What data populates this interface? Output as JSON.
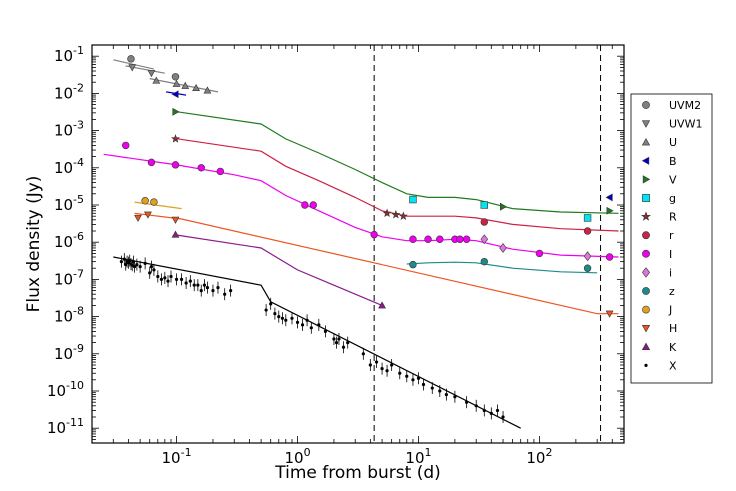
{
  "chart_data": {
    "type": "scatter",
    "xlabel": "Time from burst (d)",
    "ylabel": "Flux density (Jy)",
    "xscale": "log",
    "yscale": "log",
    "xlim": [
      0.02,
      500
    ],
    "ylim": [
      4e-12,
      0.2
    ],
    "legend_position": "right",
    "grid": false,
    "x_ticks": [
      {
        "value": 0.1,
        "base": "10",
        "exp": "-1"
      },
      {
        "value": 1,
        "base": "10",
        "exp": "0"
      },
      {
        "value": 10,
        "base": "10",
        "exp": "1"
      },
      {
        "value": 100,
        "base": "10",
        "exp": "2"
      }
    ],
    "y_ticks": [
      {
        "value": 1e-11,
        "base": "10",
        "exp": "-11"
      },
      {
        "value": 1e-10,
        "base": "10",
        "exp": "-10"
      },
      {
        "value": 1e-09,
        "base": "10",
        "exp": "-9"
      },
      {
        "value": 1e-08,
        "base": "10",
        "exp": "-8"
      },
      {
        "value": 1e-07,
        "base": "10",
        "exp": "-7"
      },
      {
        "value": 1e-06,
        "base": "10",
        "exp": "-6"
      },
      {
        "value": 1e-05,
        "base": "10",
        "exp": "-5"
      },
      {
        "value": 0.0001,
        "base": "10",
        "exp": "-4"
      },
      {
        "value": 0.001,
        "base": "10",
        "exp": "-3"
      },
      {
        "value": 0.01,
        "base": "10",
        "exp": "-2"
      },
      {
        "value": 0.1,
        "base": "10",
        "exp": "-1"
      }
    ],
    "vlines": [
      4.3,
      320
    ],
    "series": [
      {
        "name": "UVM2",
        "marker": "circle",
        "color": "#808080",
        "x": [
          0.042,
          0.098
        ],
        "y": [
          0.085,
          0.028
        ],
        "model": {
          "x": [
            0.03,
            0.065
          ],
          "y": [
            0.08,
            0.045
          ]
        }
      },
      {
        "name": "UVW1",
        "marker": "triangle-down",
        "color": "#808080",
        "x": [
          0.043,
          0.062
        ],
        "y": [
          0.05,
          0.035
        ],
        "model": {
          "x": [
            0.038,
            0.08
          ],
          "y": [
            0.055,
            0.035
          ]
        }
      },
      {
        "name": "U",
        "marker": "triangle-up",
        "color": "#808080",
        "x": [
          0.068,
          0.1,
          0.118,
          0.145,
          0.18
        ],
        "y": [
          0.022,
          0.018,
          0.016,
          0.014,
          0.012
        ],
        "model": {
          "x": [
            0.06,
            0.22
          ],
          "y": [
            0.025,
            0.011
          ]
        }
      },
      {
        "name": "B",
        "marker": "triangle-left",
        "color": "#0000cc",
        "x": [
          0.098,
          380
        ],
        "y": [
          0.0095,
          1.6e-05
        ],
        "model": {
          "x": [
            0.082,
            0.12
          ],
          "y": [
            0.011,
            0.009
          ]
        }
      },
      {
        "name": "V",
        "marker": "triangle-right",
        "color": "#207a20",
        "x": [
          0.098,
          50,
          380
        ],
        "y": [
          0.0032,
          9e-06,
          7e-06
        ],
        "model": {
          "x": [
            0.095,
            0.5,
            0.8,
            1.5,
            3,
            5,
            8,
            12,
            20,
            30,
            60,
            150,
            450
          ],
          "y": [
            0.0033,
            0.0015,
            0.0006,
            0.00025,
            9e-05,
            4e-05,
            2e-05,
            1.6e-05,
            1.6e-05,
            1.4e-05,
            8e-06,
            6.5e-06,
            6e-06
          ]
        }
      },
      {
        "name": "g",
        "marker": "square",
        "color": "#00e5ee",
        "x": [
          9,
          35,
          250
        ],
        "y": [
          1.4e-05,
          1e-05,
          4.5e-06
        ]
      },
      {
        "name": "R",
        "marker": "star",
        "color": "#8b2d2d",
        "x": [
          0.098,
          5.5,
          6.5,
          7.5
        ],
        "y": [
          0.0006,
          6e-06,
          5.5e-06,
          5e-06
        ]
      },
      {
        "name": "r",
        "marker": "circle",
        "color": "#cc2244",
        "x": [
          35,
          250
        ],
        "y": [
          3.5e-06,
          2e-06
        ],
        "model": {
          "x": [
            0.095,
            0.5,
            0.8,
            1.5,
            3,
            5,
            8,
            12,
            20,
            30,
            60,
            150,
            450
          ],
          "y": [
            0.00062,
            0.00028,
            0.00011,
            4.5e-05,
            1.6e-05,
            7e-06,
            5e-06,
            5e-06,
            5e-06,
            4.5e-06,
            3e-06,
            2.3e-06,
            2e-06
          ]
        }
      },
      {
        "name": "I",
        "marker": "circle",
        "color": "#ee00ee",
        "x": [
          0.038,
          0.062,
          0.098,
          0.16,
          0.23,
          1.15,
          1.35,
          4.3,
          9,
          12,
          15,
          20,
          22,
          25,
          100,
          380
        ],
        "y": [
          0.0004,
          0.00014,
          0.00012,
          0.0001,
          8e-05,
          1e-05,
          1e-05,
          1.6e-06,
          1.2e-06,
          1.2e-06,
          1.2e-06,
          1.2e-06,
          1.2e-06,
          1.2e-06,
          5e-07,
          4e-07
        ],
        "model": {
          "x": [
            0.025,
            0.1,
            0.3,
            0.5,
            0.8,
            1.5,
            3,
            5,
            8,
            12,
            20,
            30,
            60,
            150,
            450
          ],
          "y": [
            0.00023,
            0.00012,
            6.5e-05,
            4.5e-05,
            1.8e-05,
            7e-06,
            2.5e-06,
            1.4e-06,
            1.1e-06,
            1.1e-06,
            1.2e-06,
            1.1e-06,
            6.5e-07,
            4.5e-07,
            4e-07
          ]
        }
      },
      {
        "name": "i",
        "marker": "diamond",
        "color": "#dd77dd",
        "x": [
          35,
          50,
          250
        ],
        "y": [
          1.2e-06,
          7e-07,
          4.2e-07
        ]
      },
      {
        "name": "z",
        "marker": "circle",
        "color": "#1f8a8a",
        "x": [
          9,
          35,
          250
        ],
        "y": [
          2.5e-07,
          3e-07,
          2e-07
        ],
        "model": {
          "x": [
            8,
            12,
            20,
            30,
            60,
            150,
            300
          ],
          "y": [
            2.6e-07,
            2.8e-07,
            2.9e-07,
            2.8e-07,
            2e-07,
            1.6e-07,
            1.5e-07
          ]
        }
      },
      {
        "name": "J",
        "marker": "circle",
        "color": "#e0a020",
        "x": [
          0.055,
          0.065
        ],
        "y": [
          1.3e-05,
          1.2e-05
        ],
        "model": {
          "x": [
            0.045,
            0.11
          ],
          "y": [
            1.2e-05,
            8e-06
          ]
        }
      },
      {
        "name": "H",
        "marker": "triangle-down",
        "color": "#ee5522",
        "x": [
          0.048,
          0.058,
          0.098,
          380
        ],
        "y": [
          4.5e-06,
          5.5e-06,
          4e-06,
          1.2e-08
        ],
        "model": {
          "x": [
            0.045,
            0.11,
            300,
            450
          ],
          "y": [
            6e-06,
            4.2e-06,
            1.2e-08,
            1.2e-08
          ]
        }
      },
      {
        "name": "K",
        "marker": "triangle-up",
        "color": "#8b1a8b",
        "x": [
          0.098,
          5
        ],
        "y": [
          1.6e-06,
          2e-08
        ],
        "model": {
          "x": [
            0.095,
            0.5,
            1,
            2,
            5
          ],
          "y": [
            1.6e-06,
            7e-07,
            1.8e-07,
            7e-08,
            2e-08
          ]
        }
      },
      {
        "name": "X",
        "marker": "dot",
        "color": "#000000",
        "x": [
          0.035,
          0.037,
          0.038,
          0.039,
          0.04,
          0.041,
          0.042,
          0.043,
          0.044,
          0.045,
          0.047,
          0.05,
          0.055,
          0.06,
          0.062,
          0.065,
          0.07,
          0.075,
          0.08,
          0.085,
          0.09,
          0.1,
          0.11,
          0.12,
          0.13,
          0.14,
          0.15,
          0.16,
          0.17,
          0.18,
          0.2,
          0.22,
          0.25,
          0.28,
          0.55,
          0.6,
          0.65,
          0.7,
          0.75,
          0.8,
          0.9,
          1,
          1.1,
          1.2,
          1.3,
          1.5,
          1.7,
          2,
          2.1,
          2.2,
          2.4,
          2.6,
          3.5,
          4,
          4.5,
          5,
          5.5,
          6,
          7,
          8,
          9,
          10,
          11,
          13,
          15,
          17,
          20,
          25,
          30,
          35,
          40,
          45,
          50
        ],
        "y": [
          3e-07,
          3.5e-07,
          2.5e-07,
          3e-07,
          2.8e-07,
          3.2e-07,
          2.6e-07,
          2.4e-07,
          3e-07,
          2.2e-07,
          2.5e-07,
          2.2e-07,
          2.7e-07,
          1.5e-07,
          2.2e-07,
          1.8e-07,
          1.2e-07,
          1e-07,
          1.1e-07,
          9e-08,
          1.2e-07,
          1e-07,
          1e-07,
          8e-08,
          9e-08,
          7e-08,
          7e-08,
          5e-08,
          7e-08,
          6e-08,
          5e-08,
          6e-08,
          4e-08,
          5e-08,
          1.5e-08,
          2.2e-08,
          1.2e-08,
          1e-08,
          9e-09,
          8e-09,
          9e-09,
          7e-09,
          6e-09,
          8e-09,
          5e-09,
          6e-09,
          4e-09,
          2.5e-09,
          2e-09,
          2.5e-09,
          1.5e-09,
          2e-09,
          1e-09,
          5e-10,
          6e-10,
          4e-10,
          3.5e-10,
          5e-10,
          3e-10,
          2.5e-10,
          2e-10,
          2.2e-10,
          1.5e-10,
          1.2e-10,
          1e-10,
          8e-11,
          7e-11,
          5e-11,
          4e-11,
          3e-11,
          2.5e-11,
          3e-11,
          2e-11
        ],
        "model": {
          "x": [
            0.03,
            0.5,
            0.6,
            70
          ],
          "y": [
            4e-07,
            7e-08,
            2.5e-08,
            1e-11
          ]
        }
      }
    ]
  }
}
